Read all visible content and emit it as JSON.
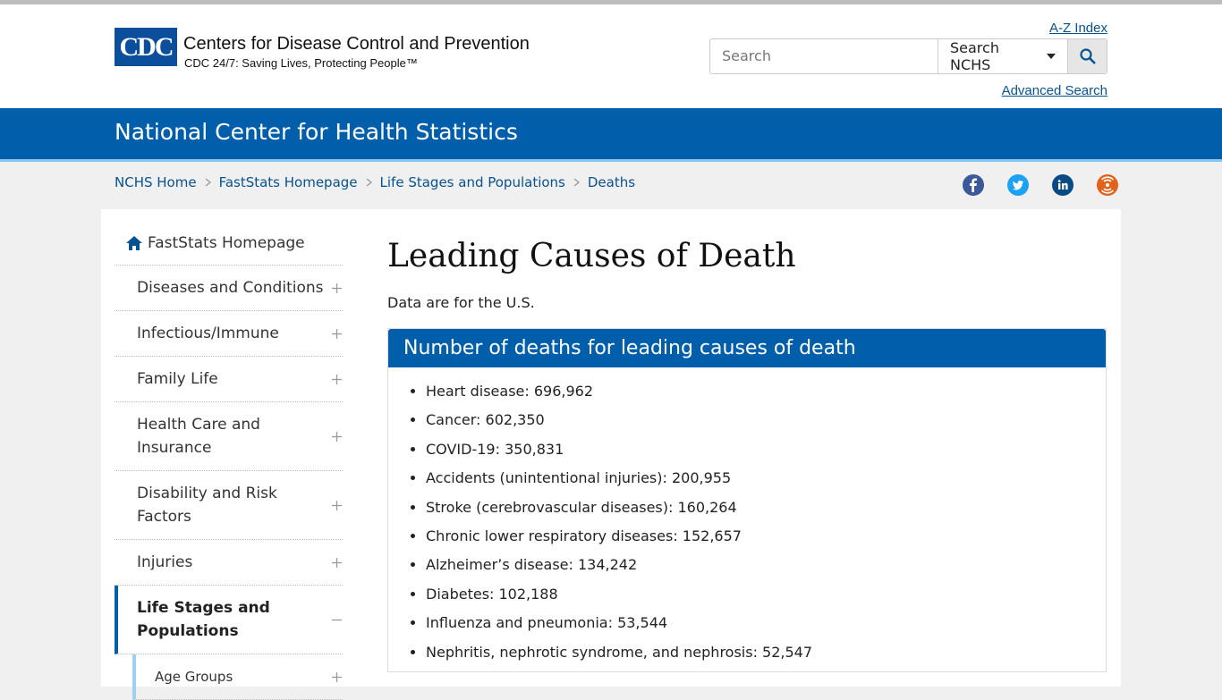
{
  "header": {
    "logo": "CDC",
    "title": "Centers for Disease Control and Prevention",
    "tagline": "CDC 24/7: Saving Lives, Protecting People™",
    "az_index": "A-Z Index",
    "search_placeholder": "Search",
    "search_scope": "Search NCHS",
    "advanced_search": "Advanced Search"
  },
  "banner": {
    "title": "National Center for Health Statistics"
  },
  "breadcrumbs": [
    "NCHS Home",
    "FastStats Homepage",
    "Life Stages and Populations",
    "Deaths"
  ],
  "sidebar": {
    "home": "FastStats Homepage",
    "items": [
      "Diseases and Conditions",
      "Infectious/Immune",
      "Family Life",
      "Health Care and Insurance",
      "Disability and Risk Factors",
      "Injuries",
      "Life Stages and Populations"
    ],
    "active": "Life Stages and Populations",
    "subitems": [
      "Age Groups"
    ]
  },
  "main": {
    "title": "Leading Causes of Death",
    "intro": "Data are for the U.S.",
    "box_title": "Number of deaths for leading causes of death",
    "list": [
      "Heart disease: 696,962",
      "Cancer: 602,350",
      "COVID-19: 350,831",
      "Accidents (unintentional injuries): 200,955",
      "Stroke (cerebrovascular diseases): 160,264",
      "Chronic lower respiratory diseases: 152,657",
      "Alzheimer’s disease: 134,242",
      "Diabetes: 102,188",
      "Influenza and pneumonia: 53,544",
      "Nephritis, nephrotic syndrome, and nephrosis: 52,547"
    ]
  }
}
